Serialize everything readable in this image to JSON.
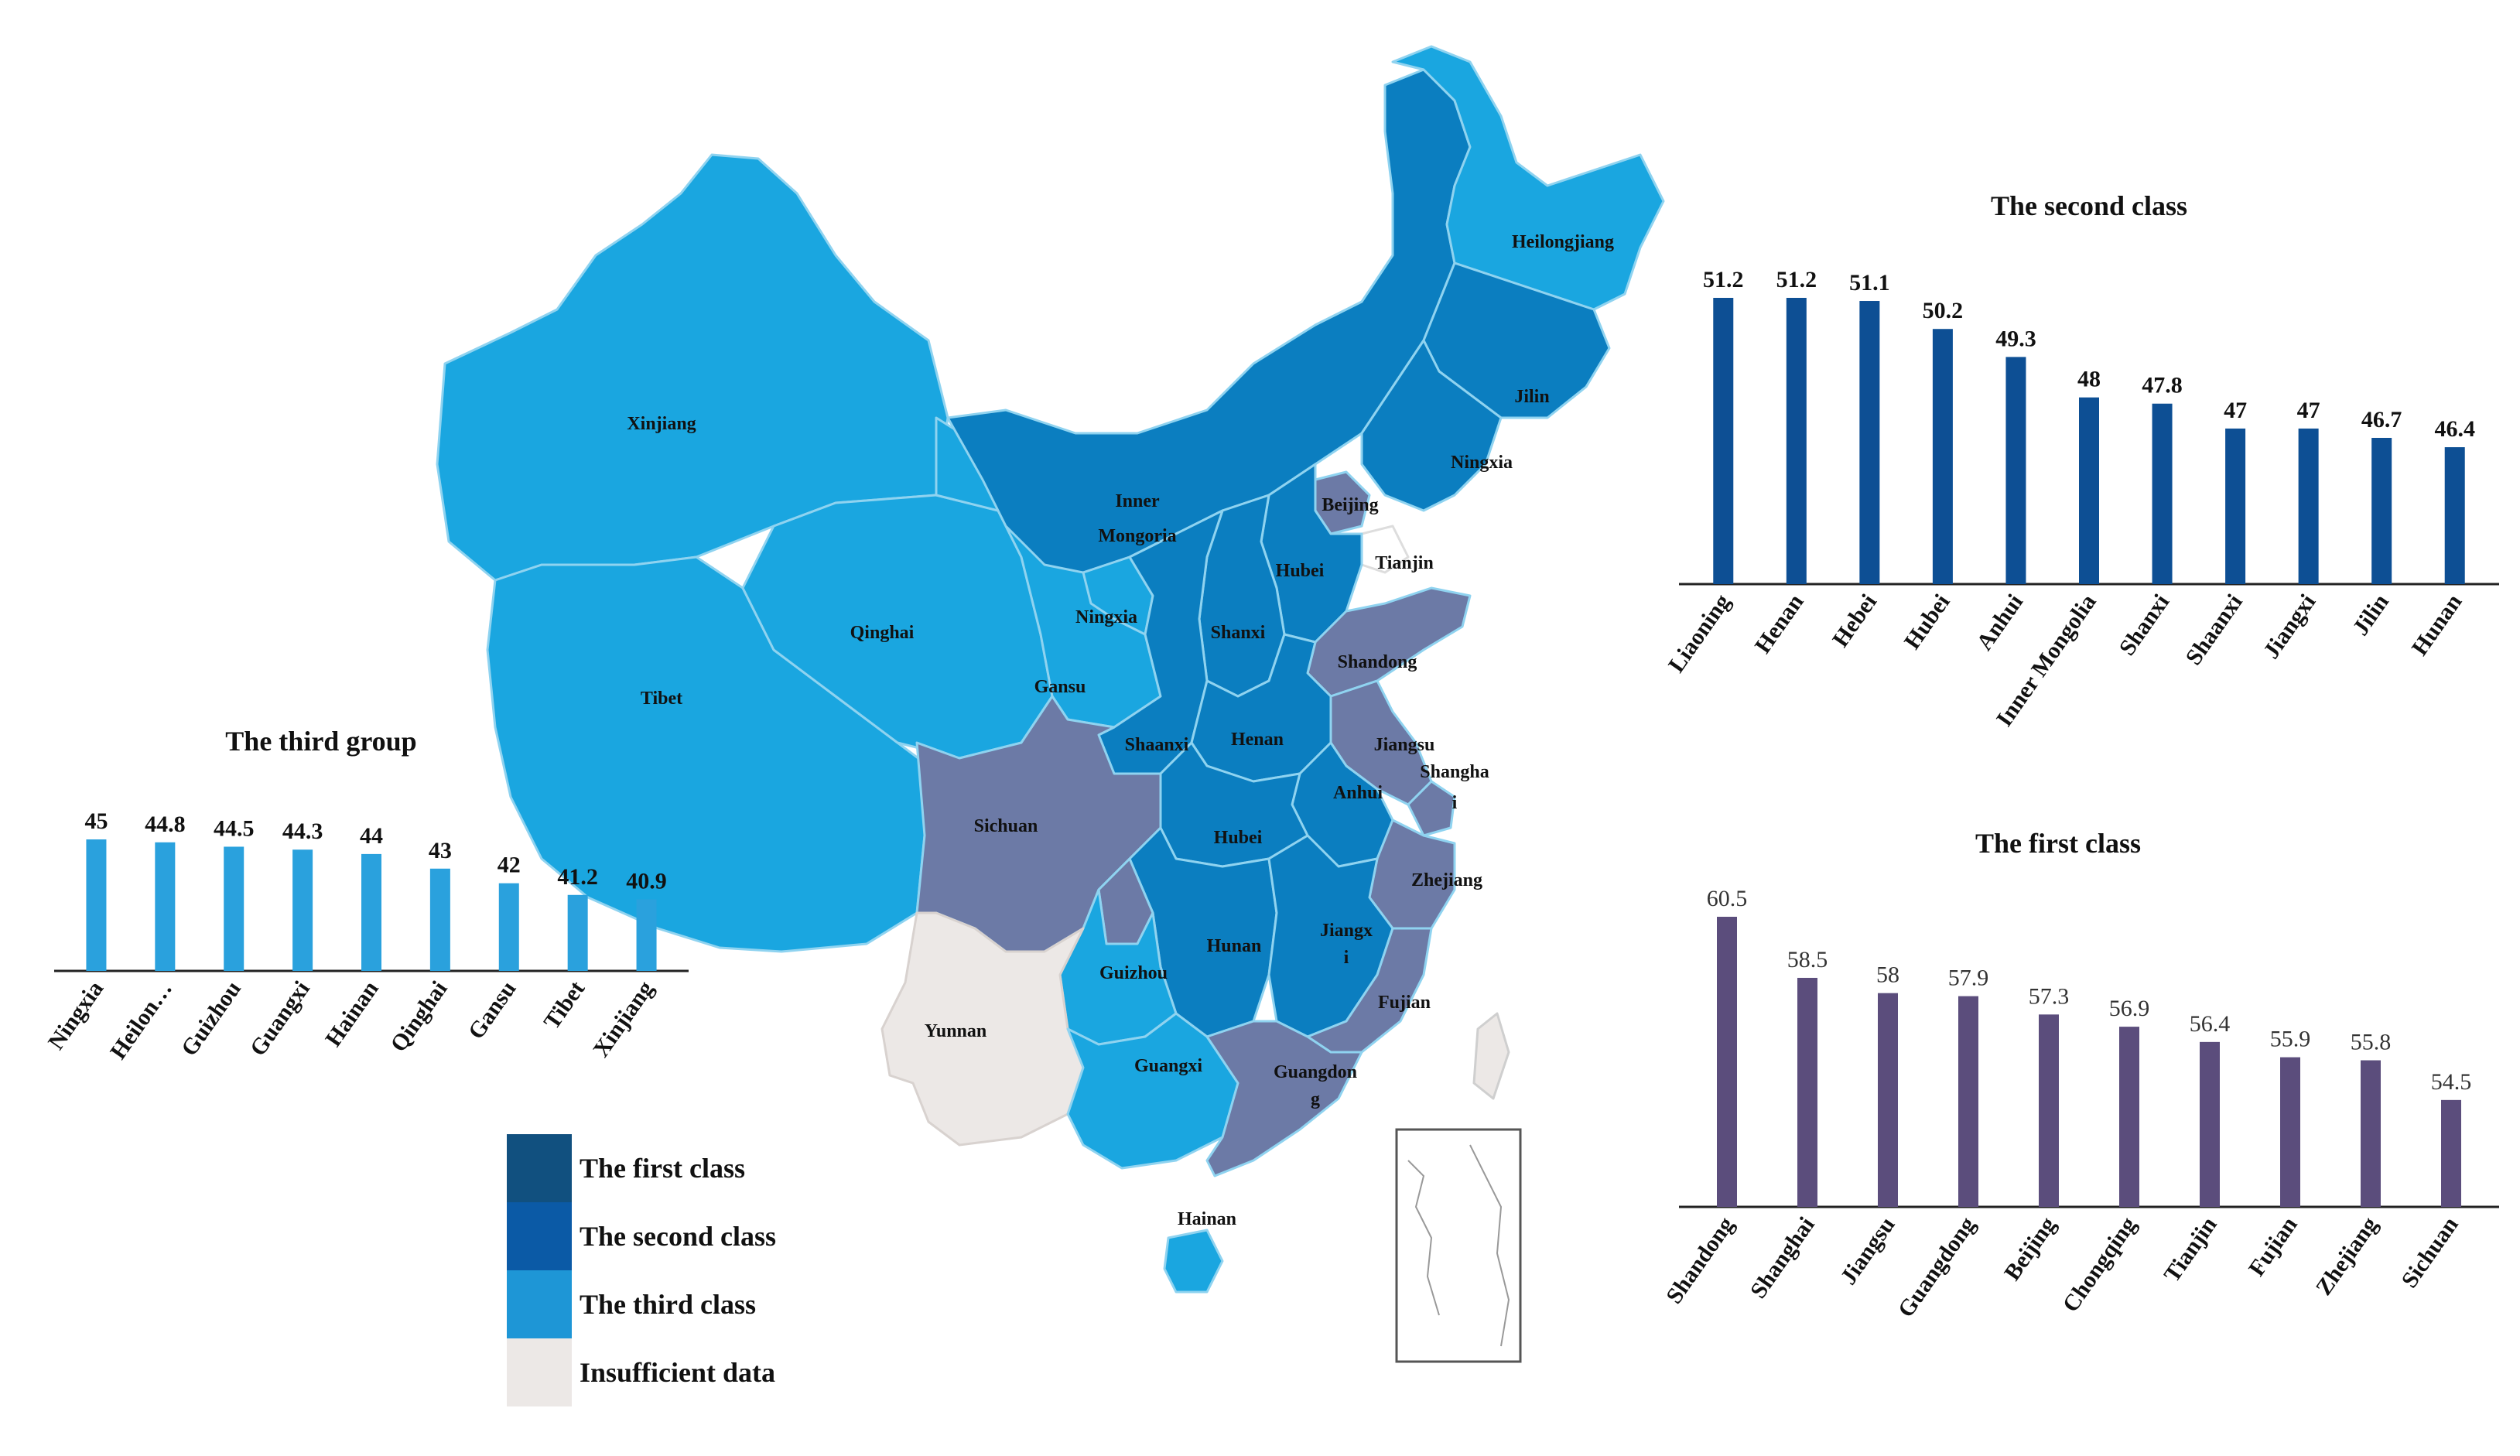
{
  "colors": {
    "first_class": "#6c7aa6",
    "second_class": "#0b7ec0",
    "third_class": "#1aa6e0",
    "insufficient": "#ece8e6",
    "bar_second": "#0d4f94",
    "bar_first": "#5b4d7c",
    "bar_third": "#2aa1dd"
  },
  "legend": {
    "items": [
      {
        "label": "The first class",
        "color": "#11507f"
      },
      {
        "label": "The second class",
        "color": "#0b5aa6"
      },
      {
        "label": "The third class",
        "color": "#1e96d6"
      },
      {
        "label": "Insufficient data",
        "color": "#ece8e6"
      }
    ]
  },
  "map_labels": {
    "xinjiang": "Xinjiang",
    "tibet": "Tibet",
    "qinghai": "Qinghai",
    "gansu": "Gansu",
    "inner_mongolia_1": "Inner",
    "inner_mongolia_2": "Mongoria",
    "heilongjiang": "Heilongjiang",
    "jilin": "Jilin",
    "liaoning": "Ningxia",
    "beijing": "Beijing",
    "tianjin": "Tianjin",
    "hebei": "Hubei",
    "ningxia": "Ningxia",
    "shanxi": "Shanxi",
    "shandong": "Shandong",
    "shaanxi": "Shaanxi",
    "henan": "Henan",
    "jiangsu": "Jiangsu",
    "shanghai_1": "Shangha",
    "shanghai_2": "i",
    "anhui": "Anhui",
    "sichuan": "Sichuan",
    "hubei": "Hubei",
    "zhejiang": "Zhejiang",
    "hunan": "Hunan",
    "jiangxi_1": "Jiangx",
    "jiangxi_2": "i",
    "guizhou": "Guizhou",
    "yunnan": "Yunnan",
    "fujian": "Fujian",
    "guangxi": "Guangxi",
    "guangdong_1": "Guangdon",
    "guangdong_2": "g",
    "hainan": "Hainan"
  },
  "chart_data": [
    {
      "type": "bar",
      "title": "The third group",
      "categories": [
        "Ningxia",
        "Heilon…",
        "Guizhou",
        "Guangxi",
        "Hainan",
        "Qinghai",
        "Gansu",
        "Tibet",
        "Xinjiang"
      ],
      "values": [
        45,
        44.8,
        44.5,
        44.3,
        44,
        43,
        42,
        41.2,
        40.9
      ],
      "value_labels": [
        "45",
        "44.8",
        "44.5",
        "44.3",
        "44",
        "43",
        "42",
        "41.2",
        "40.9"
      ],
      "color": "#2aa1dd"
    },
    {
      "type": "bar",
      "title": "The second class",
      "categories": [
        "Liaoning",
        "Henan",
        "Hebei",
        "Hubei",
        "Anhui",
        "Inner Mongolia",
        "Shanxi",
        "Shaanxi",
        "Jiangxi",
        "Jilin",
        "Hunan"
      ],
      "values": [
        51.2,
        51.2,
        51.1,
        50.2,
        49.3,
        48,
        47.8,
        47,
        47,
        46.7,
        46.4
      ],
      "value_labels": [
        "51.2",
        "51.2",
        "51.1",
        "50.2",
        "49.3",
        "48",
        "47.8",
        "47",
        "47",
        "46.7",
        "46.4"
      ],
      "color": "#0d4f94"
    },
    {
      "type": "bar",
      "title": "The first class",
      "categories": [
        "Shandong",
        "Shanghai",
        "Jiangsu",
        "Guangdong",
        "Beijing",
        "Chongqing",
        "Tianjin",
        "Fujian",
        "Zhejiang",
        "Sichuan"
      ],
      "values": [
        60.5,
        58.5,
        58,
        57.9,
        57.3,
        56.9,
        56.4,
        55.9,
        55.8,
        54.5
      ],
      "value_labels": [
        "60.5",
        "58.5",
        "58",
        "57.9",
        "57.3",
        "56.9",
        "56.4",
        "55.9",
        "55.8",
        "54.5"
      ],
      "color": "#5b4d7c"
    }
  ]
}
